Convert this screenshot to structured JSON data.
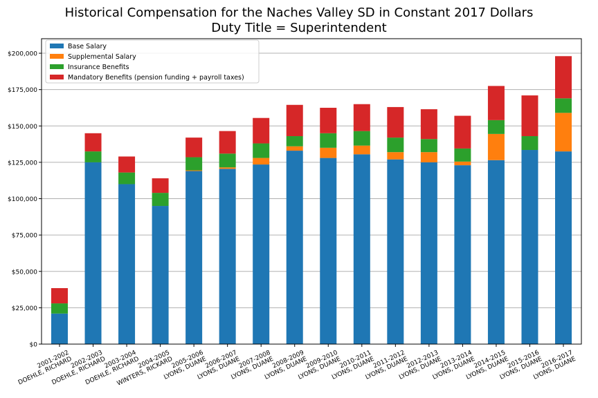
{
  "chart_data": {
    "type": "bar",
    "stacked": true,
    "title": "Historical Compensation for the Naches Valley SD in Constant 2017 Dollars",
    "subtitle": "Duty Title = Superintendent",
    "xlabel": "",
    "ylabel": "",
    "ylim": [
      0,
      210000
    ],
    "yticks": [
      0,
      25000,
      50000,
      75000,
      100000,
      125000,
      150000,
      175000,
      200000
    ],
    "ytick_labels": [
      "$0",
      "$25,000",
      "$50,000",
      "$75,000",
      "$100,000",
      "$125,000",
      "$150,000",
      "$175,000",
      "$200,000"
    ],
    "grid": "horizontal",
    "legend_position": "top-left",
    "categories": [
      [
        "2001-2002",
        "DOEHLE, RICHARD"
      ],
      [
        "2002-2003",
        "DOEHLE, RICHARD"
      ],
      [
        "2003-2004",
        "DOEHLE, RICHARD"
      ],
      [
        "2004-2005",
        "WINTERS, RICKARD"
      ],
      [
        "2005-2006",
        "LYONS, DUANE"
      ],
      [
        "2006-2007",
        "LYONS, DUANE"
      ],
      [
        "2007-2008",
        "LYONS, DUANE"
      ],
      [
        "2008-2009",
        "LYONS, DUANE"
      ],
      [
        "2009-2010",
        "LYONS, DUANE"
      ],
      [
        "2010-2011",
        "LYONS, DUANE"
      ],
      [
        "2011-2012",
        "LYONS, DUANE"
      ],
      [
        "2012-2013",
        "LYONS, DUANE"
      ],
      [
        "2013-2014",
        "LYONS, DUANE"
      ],
      [
        "2014-2015",
        "LYONS, DUANE"
      ],
      [
        "2015-2016",
        "LYONS, DUANE"
      ],
      [
        "2016-2017",
        "LYONS, DUANE"
      ]
    ],
    "series": [
      {
        "name": "Base Salary",
        "color": "#1f77b4",
        "values": [
          21000,
          125000,
          110000,
          95000,
          119000,
          120500,
          123500,
          133000,
          128000,
          130500,
          127000,
          125000,
          123000,
          126500,
          133500,
          132500
        ]
      },
      {
        "name": "Supplemental Salary",
        "color": "#ff7f0e",
        "values": [
          0,
          0,
          0,
          0,
          500,
          1000,
          4500,
          3000,
          7000,
          6000,
          5000,
          7000,
          2500,
          18000,
          0,
          26500
        ]
      },
      {
        "name": "Insurance Benefits",
        "color": "#2ca02c",
        "values": [
          7000,
          7500,
          8000,
          9000,
          9000,
          9500,
          10000,
          7000,
          10000,
          10000,
          10000,
          9000,
          9000,
          9500,
          9500,
          10000
        ]
      },
      {
        "name": "Mandatory Benefits (pension funding + payroll taxes)",
        "color": "#d62728",
        "values": [
          10500,
          12500,
          11000,
          10000,
          13500,
          15500,
          17500,
          21500,
          17500,
          18500,
          21000,
          20500,
          22500,
          23500,
          28000,
          29000
        ]
      }
    ]
  }
}
